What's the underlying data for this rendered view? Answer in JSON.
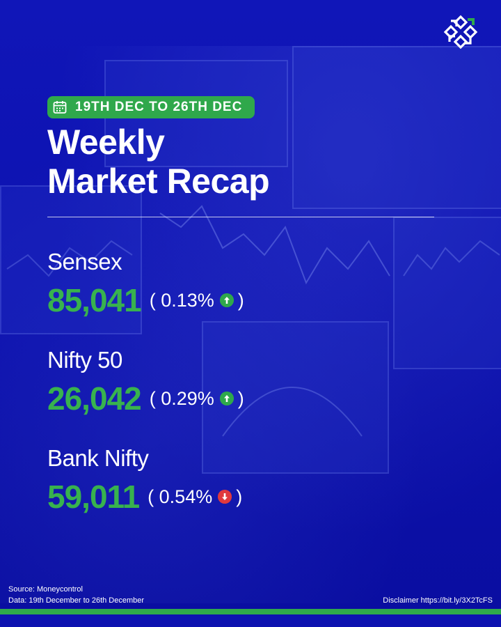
{
  "header": {
    "date_range": "19TH DEC TO 26TH DEC",
    "title_line1": "Weekly",
    "title_line2": "Market Recap"
  },
  "stats": [
    {
      "name": "Sensex",
      "value": "85,041",
      "change_open": "( 0.13%",
      "change_close": ")",
      "direction": "up"
    },
    {
      "name": "Nifty 50",
      "value": "26,042",
      "change_open": "( 0.29%",
      "change_close": ")",
      "direction": "up"
    },
    {
      "name": "Bank Nifty",
      "value": "59,011",
      "change_open": "( 0.54%",
      "change_close": ")",
      "direction": "down"
    }
  ],
  "footer": {
    "source": "Source: Moneycontrol",
    "data_range": "Data: 19th December to 26th December",
    "disclaimer": "Disclaimer https://bit.ly/3X2TcFS"
  },
  "icons": {
    "logo": "logo-icon",
    "calendar": "calendar-icon",
    "up": "arrow-up-icon",
    "down": "arrow-down-icon"
  },
  "colors": {
    "background": "#0d12b0",
    "accent_green": "#2fa84b",
    "value_green": "#38b24e",
    "down_red": "#e0393e",
    "text": "#ffffff"
  }
}
